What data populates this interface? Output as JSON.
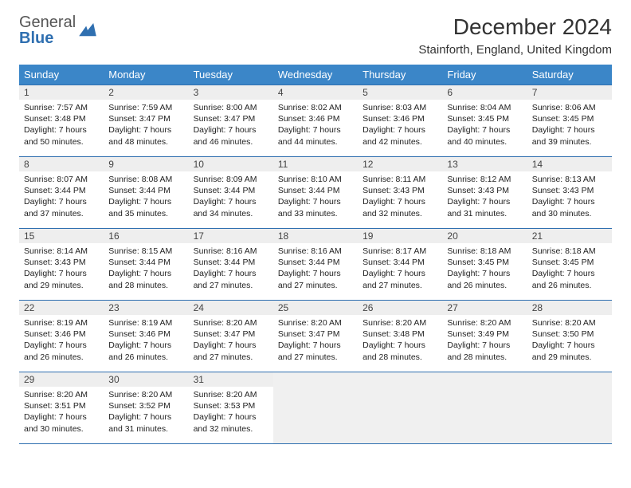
{
  "brand": {
    "part1": "General",
    "part2": "Blue"
  },
  "title": "December 2024",
  "location": "Stainforth, England, United Kingdom",
  "colors": {
    "header_bg": "#3b86c8",
    "header_fg": "#ffffff",
    "rule": "#2f6fb0",
    "daynum_bg": "#eeeeee",
    "empty_bg": "#f0f0f0",
    "brand_gray": "#555555",
    "brand_blue": "#2f6fb0"
  },
  "dow": [
    "Sunday",
    "Monday",
    "Tuesday",
    "Wednesday",
    "Thursday",
    "Friday",
    "Saturday"
  ],
  "weeks": [
    [
      {
        "n": "1",
        "sr": "7:57 AM",
        "ss": "3:48 PM",
        "dl": "7 hours and 50 minutes."
      },
      {
        "n": "2",
        "sr": "7:59 AM",
        "ss": "3:47 PM",
        "dl": "7 hours and 48 minutes."
      },
      {
        "n": "3",
        "sr": "8:00 AM",
        "ss": "3:47 PM",
        "dl": "7 hours and 46 minutes."
      },
      {
        "n": "4",
        "sr": "8:02 AM",
        "ss": "3:46 PM",
        "dl": "7 hours and 44 minutes."
      },
      {
        "n": "5",
        "sr": "8:03 AM",
        "ss": "3:46 PM",
        "dl": "7 hours and 42 minutes."
      },
      {
        "n": "6",
        "sr": "8:04 AM",
        "ss": "3:45 PM",
        "dl": "7 hours and 40 minutes."
      },
      {
        "n": "7",
        "sr": "8:06 AM",
        "ss": "3:45 PM",
        "dl": "7 hours and 39 minutes."
      }
    ],
    [
      {
        "n": "8",
        "sr": "8:07 AM",
        "ss": "3:44 PM",
        "dl": "7 hours and 37 minutes."
      },
      {
        "n": "9",
        "sr": "8:08 AM",
        "ss": "3:44 PM",
        "dl": "7 hours and 35 minutes."
      },
      {
        "n": "10",
        "sr": "8:09 AM",
        "ss": "3:44 PM",
        "dl": "7 hours and 34 minutes."
      },
      {
        "n": "11",
        "sr": "8:10 AM",
        "ss": "3:44 PM",
        "dl": "7 hours and 33 minutes."
      },
      {
        "n": "12",
        "sr": "8:11 AM",
        "ss": "3:43 PM",
        "dl": "7 hours and 32 minutes."
      },
      {
        "n": "13",
        "sr": "8:12 AM",
        "ss": "3:43 PM",
        "dl": "7 hours and 31 minutes."
      },
      {
        "n": "14",
        "sr": "8:13 AM",
        "ss": "3:43 PM",
        "dl": "7 hours and 30 minutes."
      }
    ],
    [
      {
        "n": "15",
        "sr": "8:14 AM",
        "ss": "3:43 PM",
        "dl": "7 hours and 29 minutes."
      },
      {
        "n": "16",
        "sr": "8:15 AM",
        "ss": "3:44 PM",
        "dl": "7 hours and 28 minutes."
      },
      {
        "n": "17",
        "sr": "8:16 AM",
        "ss": "3:44 PM",
        "dl": "7 hours and 27 minutes."
      },
      {
        "n": "18",
        "sr": "8:16 AM",
        "ss": "3:44 PM",
        "dl": "7 hours and 27 minutes."
      },
      {
        "n": "19",
        "sr": "8:17 AM",
        "ss": "3:44 PM",
        "dl": "7 hours and 27 minutes."
      },
      {
        "n": "20",
        "sr": "8:18 AM",
        "ss": "3:45 PM",
        "dl": "7 hours and 26 minutes."
      },
      {
        "n": "21",
        "sr": "8:18 AM",
        "ss": "3:45 PM",
        "dl": "7 hours and 26 minutes."
      }
    ],
    [
      {
        "n": "22",
        "sr": "8:19 AM",
        "ss": "3:46 PM",
        "dl": "7 hours and 26 minutes."
      },
      {
        "n": "23",
        "sr": "8:19 AM",
        "ss": "3:46 PM",
        "dl": "7 hours and 26 minutes."
      },
      {
        "n": "24",
        "sr": "8:20 AM",
        "ss": "3:47 PM",
        "dl": "7 hours and 27 minutes."
      },
      {
        "n": "25",
        "sr": "8:20 AM",
        "ss": "3:47 PM",
        "dl": "7 hours and 27 minutes."
      },
      {
        "n": "26",
        "sr": "8:20 AM",
        "ss": "3:48 PM",
        "dl": "7 hours and 28 minutes."
      },
      {
        "n": "27",
        "sr": "8:20 AM",
        "ss": "3:49 PM",
        "dl": "7 hours and 28 minutes."
      },
      {
        "n": "28",
        "sr": "8:20 AM",
        "ss": "3:50 PM",
        "dl": "7 hours and 29 minutes."
      }
    ],
    [
      {
        "n": "29",
        "sr": "8:20 AM",
        "ss": "3:51 PM",
        "dl": "7 hours and 30 minutes."
      },
      {
        "n": "30",
        "sr": "8:20 AM",
        "ss": "3:52 PM",
        "dl": "7 hours and 31 minutes."
      },
      {
        "n": "31",
        "sr": "8:20 AM",
        "ss": "3:53 PM",
        "dl": "7 hours and 32 minutes."
      },
      null,
      null,
      null,
      null
    ]
  ],
  "labels": {
    "sunrise": "Sunrise:",
    "sunset": "Sunset:",
    "daylight": "Daylight:"
  }
}
